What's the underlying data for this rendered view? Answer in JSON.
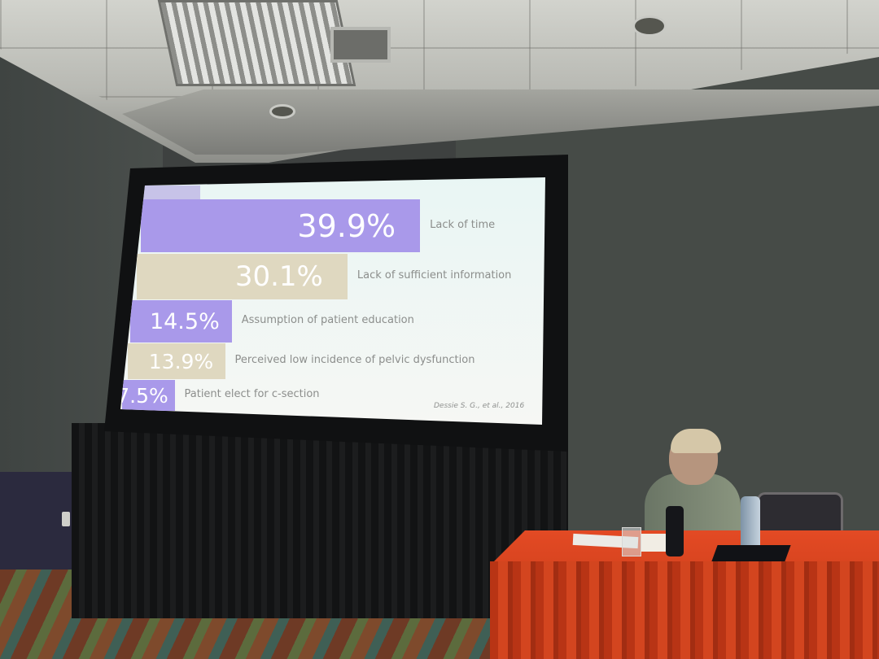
{
  "slide": {
    "bars": [
      {
        "value": 39.9,
        "display": "39.9%",
        "label": "Lack of time",
        "color": "#a999ea"
      },
      {
        "value": 30.1,
        "display": "30.1%",
        "label": "Lack of sufficient information",
        "color": "#dfd8c0"
      },
      {
        "value": 14.5,
        "display": "14.5%",
        "label": "Assumption of patient education",
        "color": "#a999ea"
      },
      {
        "value": 13.9,
        "display": "13.9%",
        "label": "Perceived low incidence of pelvic dysfunction",
        "color": "#dfd8c0"
      },
      {
        "value": 7.5,
        "display": "7.5%",
        "label": "Patient elect for c-section",
        "color": "#a999ea"
      }
    ],
    "citation": "Dessie S. G., et al., 2016"
  }
}
